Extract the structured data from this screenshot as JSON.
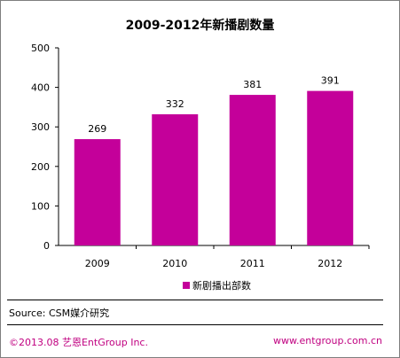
{
  "chart_data": {
    "type": "bar",
    "title": "2009-2012年新播剧数量",
    "categories": [
      "2009",
      "2010",
      "2011",
      "2012"
    ],
    "series": [
      {
        "name": "新剧播出部数",
        "values": [
          269,
          332,
          381,
          391
        ]
      }
    ],
    "data_labels": [
      "269",
      "332",
      "381",
      "391"
    ],
    "yticks": [
      "0",
      "100",
      "200",
      "300",
      "400",
      "500"
    ],
    "ylim": [
      0,
      500
    ],
    "grid": false,
    "legend": "bottom-center",
    "bar_color": "#c4009a"
  },
  "footer": {
    "source": "Source: CSM媒介研究",
    "copyright": "©2013.08 艺恩EntGroup Inc.",
    "website": "www.entgroup.com.cn",
    "accent_color": "#c00080"
  }
}
